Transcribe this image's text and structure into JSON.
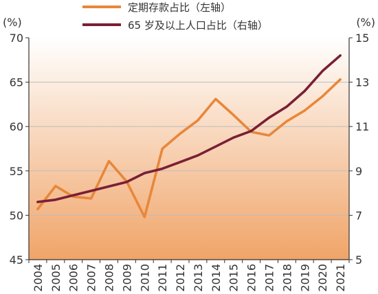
{
  "chart_data": {
    "type": "line",
    "x": [
      "2004",
      "2005",
      "2006",
      "2007",
      "2008",
      "2009",
      "2010",
      "2011",
      "2012",
      "2013",
      "2014",
      "2015",
      "2016",
      "2017",
      "2018",
      "2019",
      "2020",
      "2021"
    ],
    "series": [
      {
        "name": "定期存款占比（左轴）",
        "axis": "left",
        "color": "#e8873a",
        "values": [
          50.7,
          53.3,
          52.1,
          51.9,
          56.1,
          53.8,
          49.8,
          57.5,
          59.2,
          60.7,
          63.1,
          61.3,
          59.4,
          59.0,
          60.6,
          61.8,
          63.4,
          65.3
        ]
      },
      {
        "name": "65 岁及以上人口占比（右轴）",
        "axis": "right",
        "color": "#7a1f35",
        "values": [
          7.6,
          7.7,
          7.9,
          8.1,
          8.3,
          8.5,
          8.9,
          9.1,
          9.4,
          9.7,
          10.1,
          10.5,
          10.8,
          11.4,
          11.9,
          12.6,
          13.5,
          14.2
        ]
      }
    ],
    "y_left": {
      "unit": "(%)",
      "range": [
        45,
        70
      ],
      "ticks": [
        "45",
        "50",
        "55",
        "60",
        "65",
        "70"
      ]
    },
    "y_right": {
      "unit": "(%)",
      "range": [
        5,
        15
      ],
      "ticks": [
        "5",
        "7",
        "9",
        "11",
        "13",
        "15"
      ]
    },
    "grid": true,
    "legend_placement": "top",
    "background_gradient": [
      "#ffffff",
      "#f0a468"
    ]
  }
}
